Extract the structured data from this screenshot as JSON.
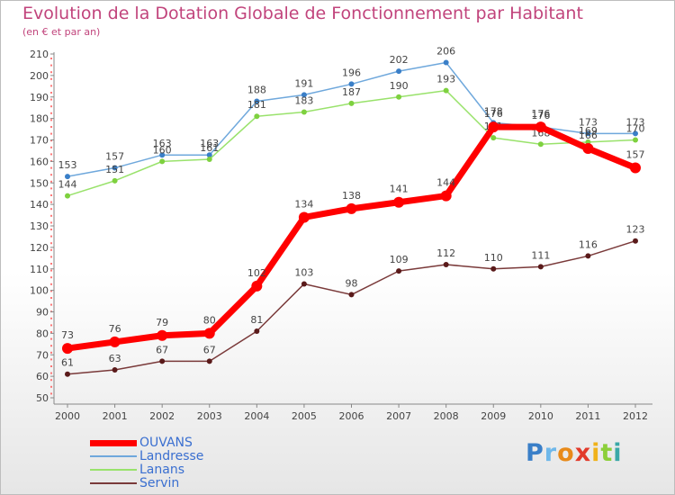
{
  "chart_data": {
    "type": "line",
    "title": "Evolution de la Dotation Globale de Fonctionnement par Habitant",
    "subtitle": "(en € et par an)",
    "xlabel": "",
    "ylabel": "",
    "ylim": [
      50,
      210
    ],
    "yticks": [
      50,
      60,
      70,
      80,
      90,
      100,
      110,
      120,
      130,
      140,
      150,
      160,
      170,
      180,
      190,
      200,
      210
    ],
    "x": [
      2000,
      2001,
      2002,
      2003,
      2004,
      2005,
      2006,
      2007,
      2008,
      2009,
      2010,
      2011,
      2012
    ],
    "series": [
      {
        "name": "Landresse",
        "color": "#6fa8dc",
        "marker": "#3a7fc8",
        "values": [
          153,
          157,
          163,
          163,
          188,
          191,
          196,
          202,
          206,
          178,
          176,
          173,
          173
        ],
        "labels": [
          "153",
          "157",
          "163",
          "163",
          "188",
          "191",
          "196",
          "202",
          "206",
          "178",
          "176",
          "173",
          "173"
        ]
      },
      {
        "name": "Lanans",
        "color": "#99e26b",
        "marker": "#7ed13f",
        "values": [
          144,
          151,
          160,
          161,
          181,
          183,
          187,
          190,
          193,
          171,
          168,
          169,
          170
        ],
        "labels": [
          "144",
          "151",
          "160",
          "161",
          "181",
          "183",
          "187",
          "190",
          "193",
          "171",
          "168",
          "169",
          "170"
        ]
      },
      {
        "name": "Servin",
        "color": "#7a3a3a",
        "marker": "#5a1a1a",
        "values": [
          61,
          63,
          67,
          67,
          81,
          103,
          98,
          109,
          112,
          110,
          111,
          116,
          123
        ],
        "labels": [
          "61",
          "63",
          "67",
          "67",
          "81",
          "103",
          "98",
          "109",
          "112",
          "110",
          "111",
          "116",
          "123"
        ]
      },
      {
        "name": "OUVANS",
        "color": "#ff0000",
        "marker": "#ff0000",
        "values": [
          73,
          76,
          79,
          80,
          102,
          134,
          138,
          141,
          144,
          176,
          176,
          166,
          157
        ],
        "labels": [
          "73",
          "76",
          "79",
          "80",
          "102",
          "134",
          "138",
          "141",
          "144",
          "176",
          "176",
          "166",
          "157"
        ]
      }
    ],
    "legend_order": [
      "OUVANS",
      "Landresse",
      "Lanans",
      "Servin"
    ],
    "grid": false,
    "legend": "bottom-left"
  },
  "logo": {
    "text": "Proxiti",
    "letters": [
      "P",
      "r",
      "o",
      "x",
      "i",
      "t",
      "i"
    ],
    "colors": [
      "#3a7fc8",
      "#6fb8ea",
      "#e88a1a",
      "#e23a2a",
      "#f0b21a",
      "#8ccf3a",
      "#3aa8a8"
    ]
  }
}
